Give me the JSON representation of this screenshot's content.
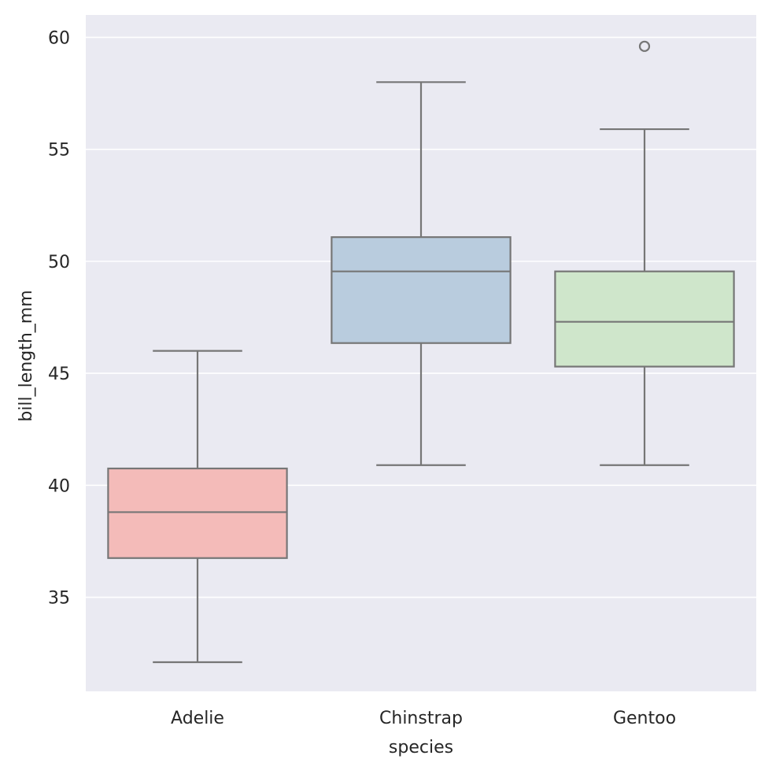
{
  "chart_data": {
    "type": "box",
    "xlabel": "species",
    "ylabel": "bill_length_mm",
    "ylim": [
      30.8,
      61.0
    ],
    "yticks": [
      35,
      40,
      45,
      50,
      55,
      60
    ],
    "grid": true,
    "categories": [
      "Adelie",
      "Chinstrap",
      "Gentoo"
    ],
    "boxes": [
      {
        "category": "Adelie",
        "whisker_low": 32.1,
        "q1": 36.75,
        "median": 38.8,
        "q3": 40.75,
        "whisker_high": 46.0,
        "outliers": [],
        "color": "#f4bbb9"
      },
      {
        "category": "Chinstrap",
        "whisker_low": 40.9,
        "q1": 46.35,
        "median": 49.55,
        "q3": 51.08,
        "whisker_high": 58.0,
        "outliers": [],
        "color": "#b9ccde"
      },
      {
        "category": "Gentoo",
        "whisker_low": 40.9,
        "q1": 45.3,
        "median": 47.3,
        "q3": 49.55,
        "whisker_high": 55.9,
        "outliers": [
          59.6
        ],
        "color": "#cfe6cb"
      }
    ],
    "colors": {
      "background": "#eaeaf2",
      "grid": "#ffffff",
      "lines": "#767676"
    }
  }
}
